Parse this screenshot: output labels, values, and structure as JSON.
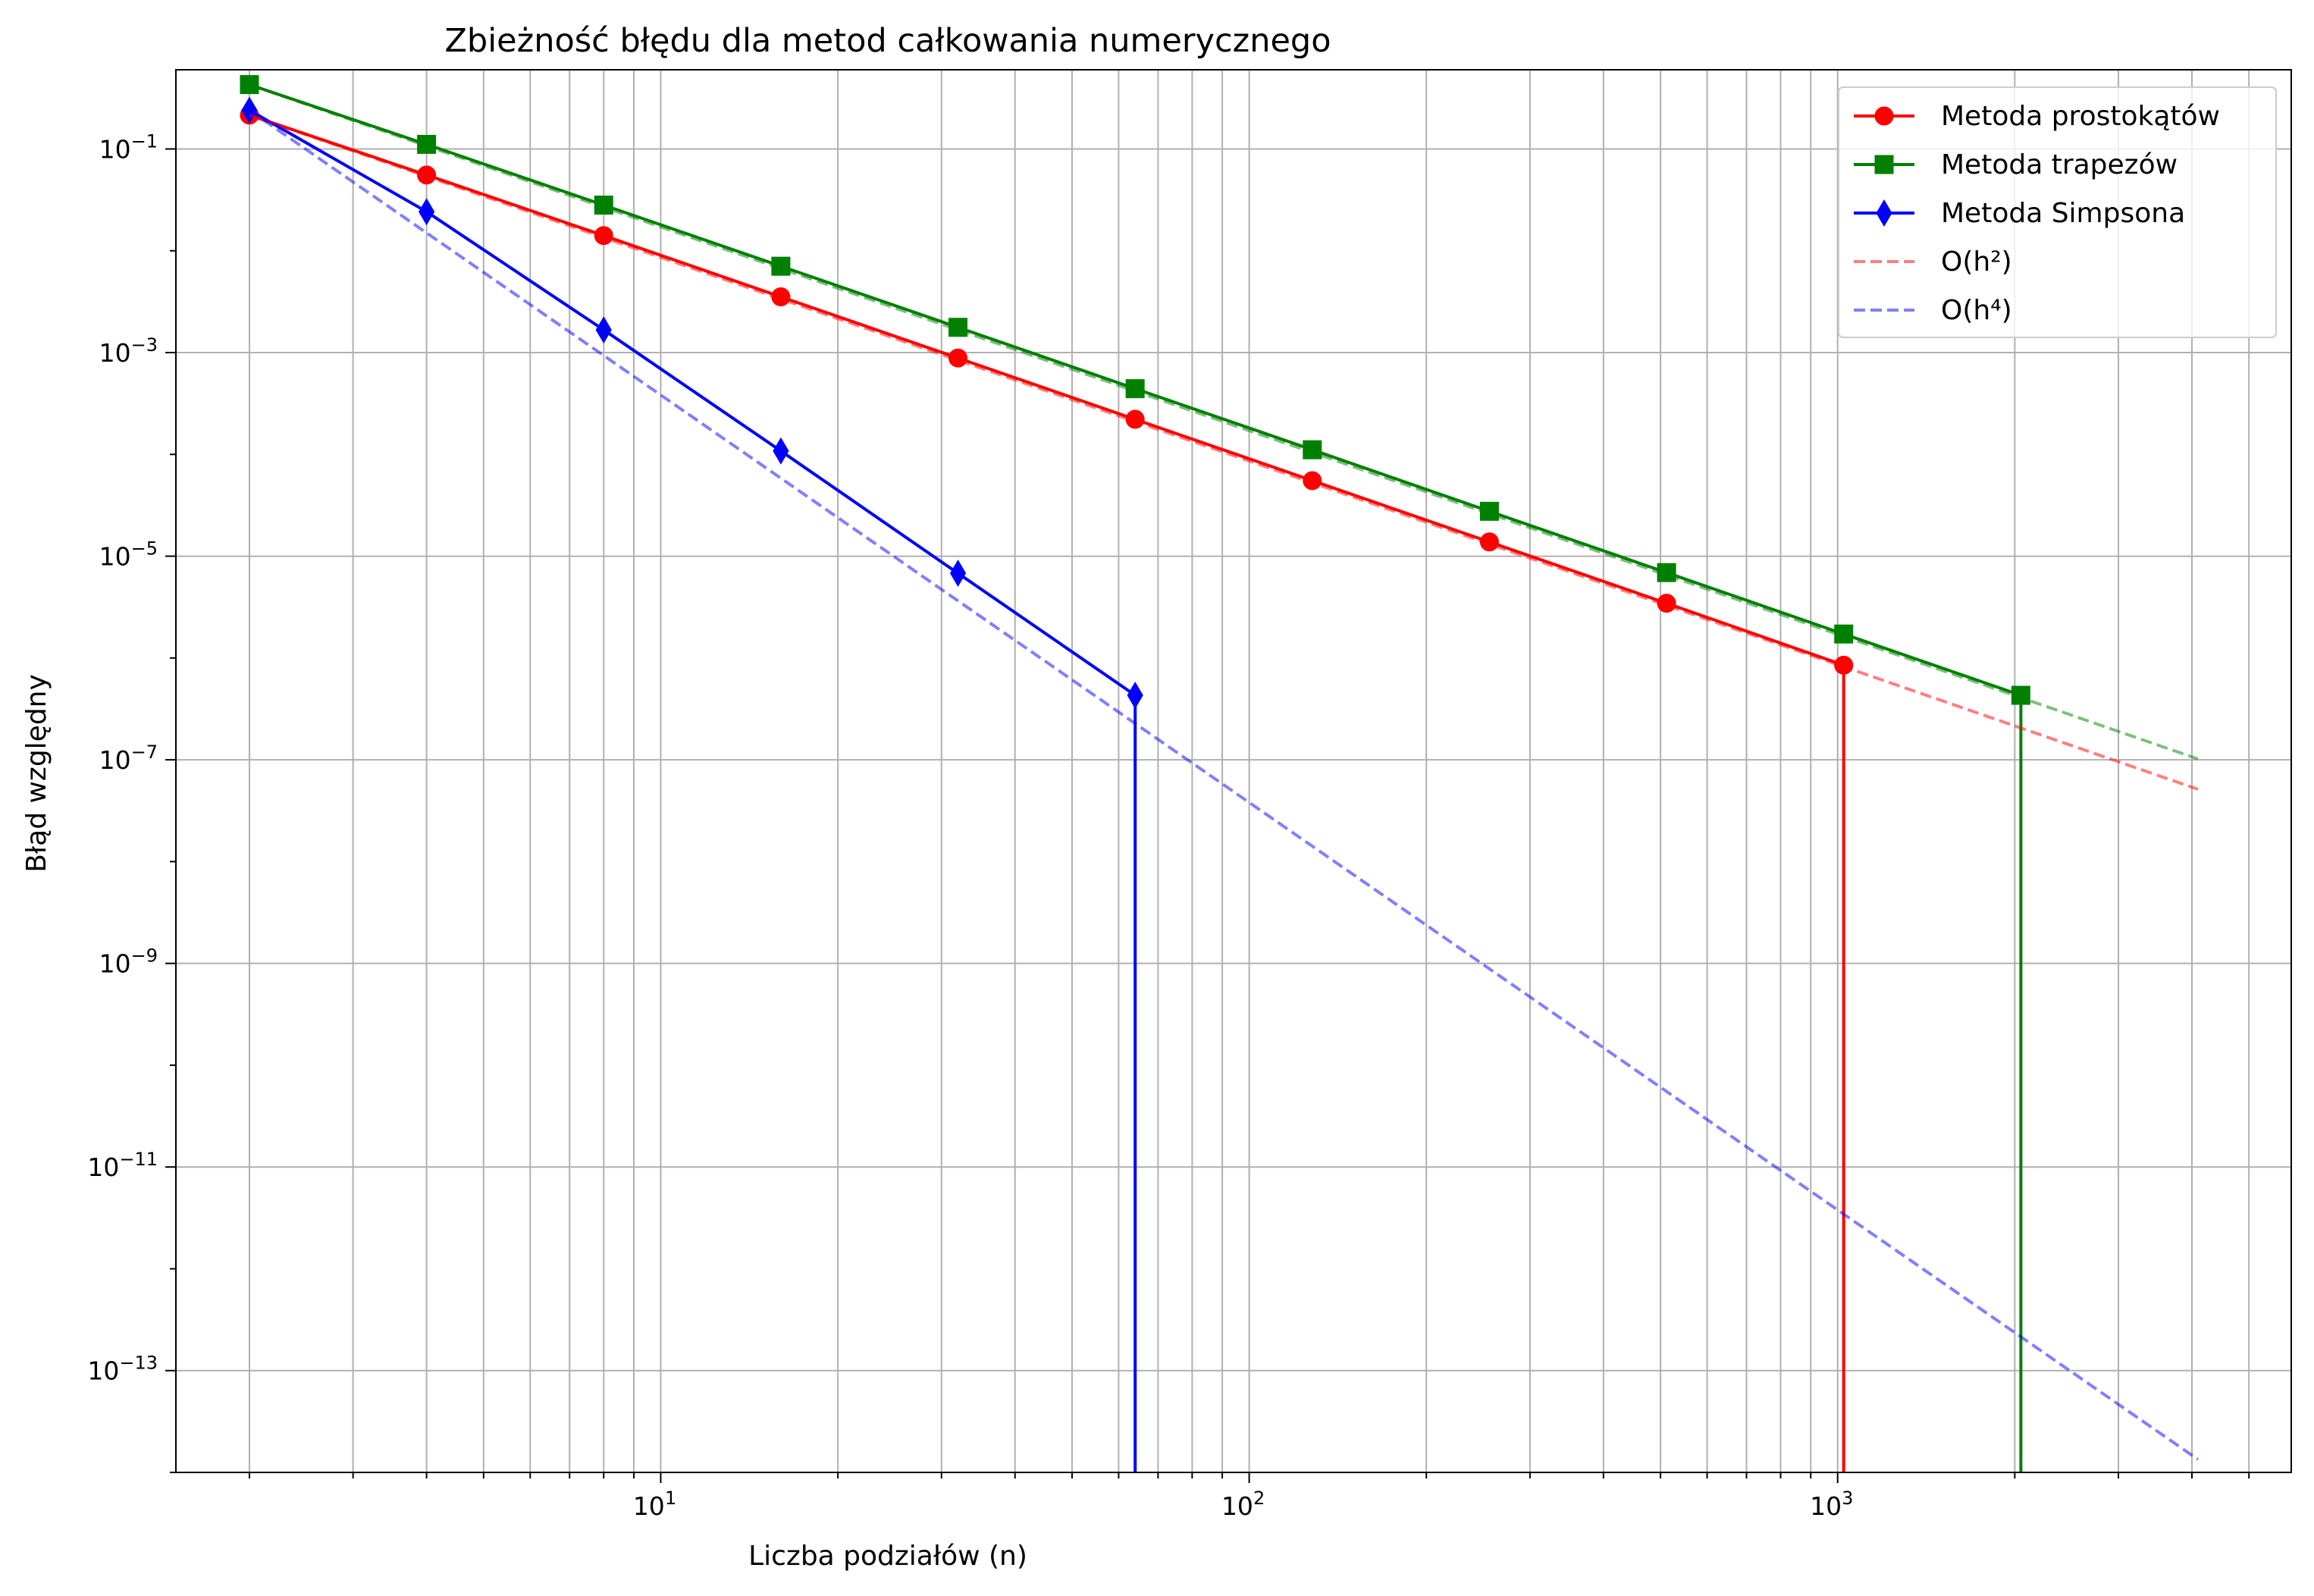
{
  "chart_data": {
    "type": "line",
    "title": "Zbieżność błędu dla metod całkowania numerycznego",
    "xlabel": "Liczba podziałów (n)",
    "ylabel": "Błąd względny",
    "xscale": "log",
    "yscale": "log",
    "xlim": [
      1.5,
      5900
    ],
    "ylim": [
      1e-14,
      0.6
    ],
    "xticks": [
      {
        "value": 10,
        "base": "10",
        "exp": "1"
      },
      {
        "value": 100,
        "base": "10",
        "exp": "2"
      },
      {
        "value": 1000,
        "base": "10",
        "exp": "3"
      }
    ],
    "yticks": [
      {
        "value": 1e-13,
        "base": "10",
        "exp": "−13"
      },
      {
        "value": 1e-11,
        "base": "10",
        "exp": "−11"
      },
      {
        "value": 1e-09,
        "base": "10",
        "exp": "−9"
      },
      {
        "value": 1e-07,
        "base": "10",
        "exp": "−7"
      },
      {
        "value": 1e-05,
        "base": "10",
        "exp": "−5"
      },
      {
        "value": 0.001,
        "base": "10",
        "exp": "−3"
      },
      {
        "value": 0.1,
        "base": "10",
        "exp": "−1"
      }
    ],
    "grid": "both",
    "legend_position": "top-right",
    "series": [
      {
        "name": "Metoda prostokątów",
        "color": "#ff0000",
        "marker": "circle",
        "linestyle": "solid",
        "x": [
          2,
          4,
          8,
          16,
          32,
          64,
          128,
          256,
          512,
          1024
        ],
        "y": [
          0.215,
          0.0555,
          0.0141,
          0.00353,
          0.000884,
          0.000221,
          5.52e-05,
          1.38e-05,
          3.45e-06,
          8.5e-07
        ],
        "drop_to_axis_after_last": true
      },
      {
        "name": "Metoda trapezów",
        "color": "#008000",
        "marker": "square",
        "linestyle": "solid",
        "x": [
          2,
          4,
          8,
          16,
          32,
          64,
          128,
          256,
          512,
          1024,
          2048
        ],
        "y": [
          0.429,
          0.111,
          0.0281,
          0.00705,
          0.00177,
          0.000442,
          0.000111,
          2.76e-05,
          6.9e-06,
          1.72e-06,
          4.3e-07
        ],
        "drop_to_axis_after_last": true
      },
      {
        "name": "Metoda Simpsona",
        "color": "#0000ff",
        "marker": "thin_diamond",
        "linestyle": "solid",
        "x": [
          2,
          4,
          8,
          16,
          32,
          64
        ],
        "y": [
          0.24,
          0.0242,
          0.00167,
          0.000108,
          6.8e-06,
          4.3e-07
        ],
        "drop_to_axis_after_last": true
      },
      {
        "name": "O(h²)",
        "color": "#ff0000",
        "alpha": 0.5,
        "linestyle": "dashed",
        "x": [
          2,
          4096
        ],
        "y": [
          0.215,
          5.13e-08
        ]
      },
      {
        "name": "",
        "color": "#008000",
        "alpha": 0.5,
        "linestyle": "dashed",
        "x": [
          2,
          4096
        ],
        "y": [
          0.429,
          1.02e-07
        ]
      },
      {
        "name": "O(h⁴)",
        "color": "#0000ff",
        "alpha": 0.5,
        "linestyle": "dashed",
        "x": [
          2,
          4096
        ],
        "y": [
          0.24,
          1.34e-14
        ]
      }
    ],
    "legend": [
      {
        "label": "Metoda prostokątów",
        "color": "#ff0000",
        "marker": "circle",
        "linestyle": "solid"
      },
      {
        "label": "Metoda trapezów",
        "color": "#008000",
        "marker": "square",
        "linestyle": "solid"
      },
      {
        "label": "Metoda Simpsona",
        "color": "#0000ff",
        "marker": "thin_diamond",
        "linestyle": "solid"
      },
      {
        "label": "O(h²)",
        "color": "#ff0000",
        "alpha": 0.5,
        "linestyle": "dashed"
      },
      {
        "label": "O(h⁴)",
        "color": "#0000ff",
        "alpha": 0.5,
        "linestyle": "dashed"
      }
    ]
  }
}
